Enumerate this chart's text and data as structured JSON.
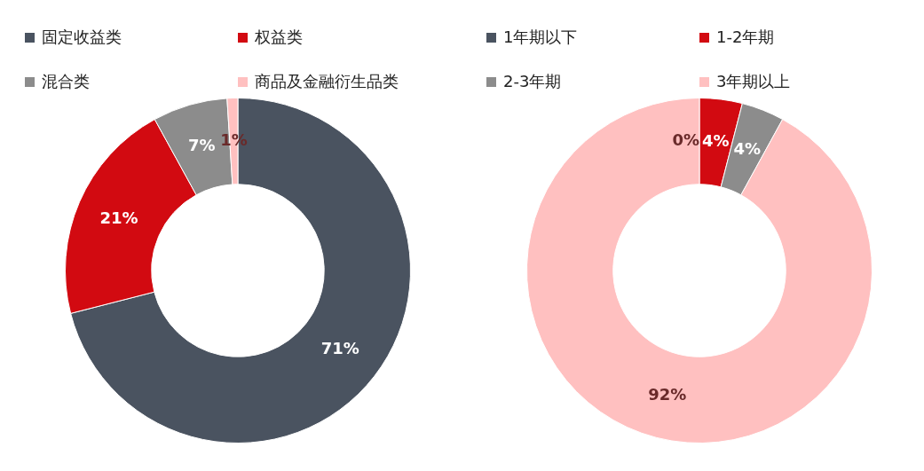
{
  "chart_data": [
    {
      "type": "donut",
      "categories": [
        "固定收益类",
        "权益类",
        "混合类",
        "商品及金融衍生品类"
      ],
      "values": [
        71,
        21,
        7,
        1
      ],
      "value_labels": [
        "71%",
        "21%",
        "7%",
        "1%"
      ],
      "colors": [
        "#4a5360",
        "#d20a11",
        "#8c8c8c",
        "#ffc0c0"
      ],
      "legend": "top"
    },
    {
      "type": "donut",
      "categories": [
        "1年期以下",
        "1-2年期",
        "2-3年期",
        "3年期以上"
      ],
      "values": [
        0,
        4,
        4,
        92
      ],
      "value_labels": [
        "0%",
        "4%",
        "4%",
        "92%"
      ],
      "colors": [
        "#4a5360",
        "#d20a11",
        "#8c8c8c",
        "#ffc0c0"
      ],
      "legend": "top"
    }
  ]
}
